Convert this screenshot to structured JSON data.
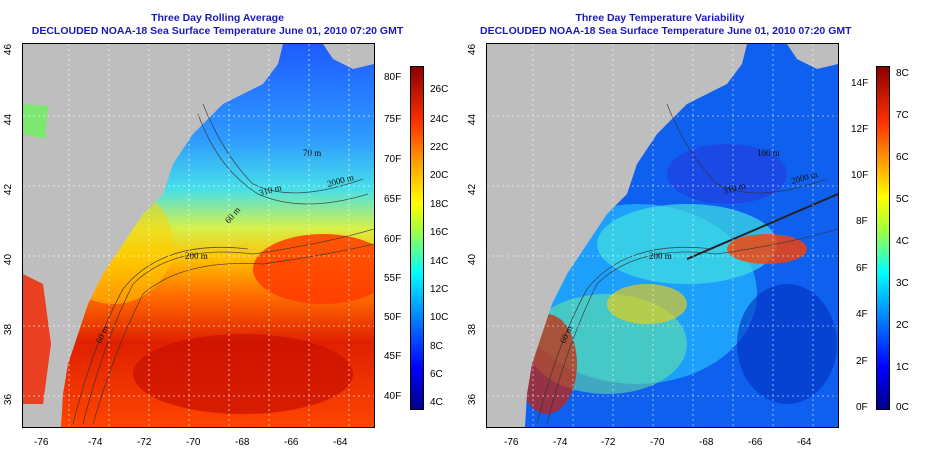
{
  "panels": [
    {
      "title": "Three Day Rolling Average",
      "subtitle": "DECLOUDED NOAA-18 Sea Surface Temperature June 01, 2010 07:20 GMT",
      "contours": [
        "60 m",
        "200 m",
        "70 m",
        "2000 m",
        "310 m",
        "60 m"
      ],
      "colorbar_left": [
        "80F",
        "75F",
        "70F",
        "65F",
        "60F",
        "55F",
        "50F",
        "45F",
        "40F"
      ],
      "colorbar_right": [
        "26C",
        "24C",
        "22C",
        "20C",
        "18C",
        "16C",
        "14C",
        "12C",
        "10C",
        "8C",
        "6C",
        "4C"
      ]
    },
    {
      "title": "Three Day Temperature Variability",
      "subtitle": "DECLOUDED NOAA-18 Sea Surface Temperature June 01, 2010 07:20 GMT",
      "contours": [
        "60 m",
        "200 m",
        "100 m",
        "2000 m",
        "310 m"
      ],
      "colorbar_left": [
        "14F",
        "12F",
        "10F",
        "8F",
        "6F",
        "4F",
        "2F",
        "0F"
      ],
      "colorbar_right": [
        "8C",
        "7C",
        "6C",
        "5C",
        "4C",
        "3C",
        "2C",
        "1C",
        "0C"
      ]
    }
  ],
  "x_ticks": [
    "-76",
    "-74",
    "-72",
    "-70",
    "-68",
    "-66",
    "-64"
  ],
  "y_ticks": [
    "46",
    "44",
    "42",
    "40",
    "38",
    "36"
  ],
  "colors": {
    "land": "#bebebe",
    "title": "#1a1ab8"
  }
}
